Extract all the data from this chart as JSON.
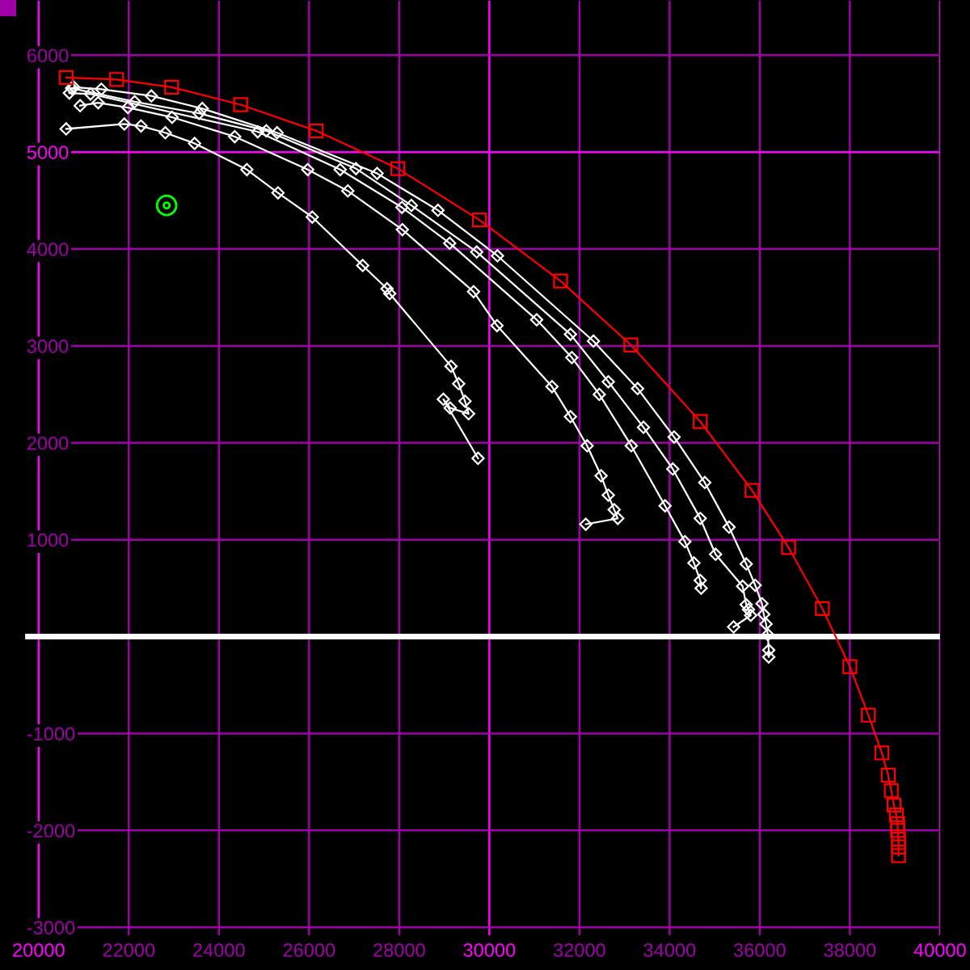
{
  "chart_data": {
    "type": "line",
    "xlim": [
      19680,
      40020
    ],
    "ylim": [
      -3090,
      6570
    ],
    "xticks": [
      20000,
      22000,
      24000,
      26000,
      28000,
      30000,
      32000,
      34000,
      36000,
      38000,
      40000
    ],
    "yticks": [
      -3000,
      -2000,
      -1000,
      {
        "value": 0,
        "label": null
      },
      1000,
      2000,
      3000,
      4000,
      5000,
      6000
    ],
    "grid": true,
    "ref_lines": [
      {
        "axis": "y",
        "value": 0,
        "color": "#ffffff"
      }
    ],
    "series": [
      {
        "color": "#ffffff",
        "marker": "diamond",
        "x": [
          20610,
          21900,
          22270,
          22810,
          23460,
          24620,
          25310,
          26070,
          27190,
          27730,
          27790,
          29150,
          29320,
          29460,
          29540,
          29130,
          28980,
          29750
        ],
        "values": [
          5240,
          5290,
          5270,
          5200,
          5090,
          4820,
          4580,
          4330,
          3830,
          3590,
          3540,
          2790,
          2610,
          2430,
          2300,
          2360,
          2450,
          1840
        ]
      },
      {
        "color": "#ffffff",
        "marker": "diamond",
        "x": [
          20920,
          21320,
          21980,
          22960,
          24350,
          25970,
          26860,
          28070,
          29650,
          30170,
          31390,
          31800,
          32170,
          32480,
          32640,
          32770,
          32850,
          32140
        ],
        "values": [
          5480,
          5510,
          5460,
          5360,
          5160,
          4820,
          4600,
          4200,
          3560,
          3210,
          2580,
          2270,
          1970,
          1660,
          1460,
          1310,
          1220,
          1160
        ]
      },
      {
        "color": "#ffffff",
        "marker": "diamond",
        "x": [
          20680,
          21150,
          24860,
          26690,
          28060,
          29120,
          31050,
          31830,
          32440,
          33150,
          33900,
          34340,
          34540,
          34680,
          34700
        ],
        "values": [
          5610,
          5600,
          5210,
          4820,
          4430,
          4060,
          3270,
          2880,
          2500,
          1970,
          1350,
          980,
          760,
          580,
          500
        ]
      },
      {
        "color": "#ffffff",
        "marker": "diamond",
        "x": [
          20730,
          22130,
          23560,
          25050,
          27040,
          28270,
          29720,
          31800,
          32640,
          33420,
          34070,
          34680,
          35020,
          35620,
          35700,
          35750,
          35800,
          35420
        ],
        "values": [
          5660,
          5520,
          5400,
          5220,
          4830,
          4450,
          3970,
          3120,
          2630,
          2160,
          1730,
          1220,
          850,
          520,
          330,
          280,
          220,
          100
        ]
      },
      {
        "color": "#ffffff",
        "marker": "diamond",
        "x": [
          20780,
          21390,
          22500,
          23630,
          25290,
          27510,
          28860,
          30180,
          32310,
          33290,
          34100,
          34780,
          35320,
          35700,
          35900,
          36050,
          36090,
          36140,
          36180,
          36200,
          36200
        ],
        "values": [
          5670,
          5650,
          5580,
          5450,
          5200,
          4780,
          4400,
          3930,
          3050,
          2560,
          2060,
          1590,
          1130,
          750,
          530,
          340,
          230,
          130,
          20,
          -140,
          -210
        ]
      },
      {
        "color": "#ff0000",
        "marker": "square",
        "x": [
          20610,
          21730,
          22950,
          24480,
          26160,
          27970,
          29780,
          31580,
          33140,
          34680,
          35830,
          36640,
          37390,
          38000,
          38410,
          38710,
          38850,
          38920,
          38980,
          39030,
          39060,
          39060,
          39080,
          39080,
          39080
        ],
        "values": [
          5770,
          5750,
          5670,
          5490,
          5220,
          4830,
          4300,
          3670,
          3010,
          2220,
          1510,
          920,
          290,
          -310,
          -810,
          -1200,
          -1430,
          -1590,
          -1740,
          -1840,
          -1930,
          -2000,
          -2090,
          -2170,
          -2260
        ]
      },
      {
        "type": "scatter",
        "color": "#00ff00",
        "marker": "circle",
        "x": [
          22840
        ],
        "values": [
          4450
        ]
      }
    ]
  }
}
